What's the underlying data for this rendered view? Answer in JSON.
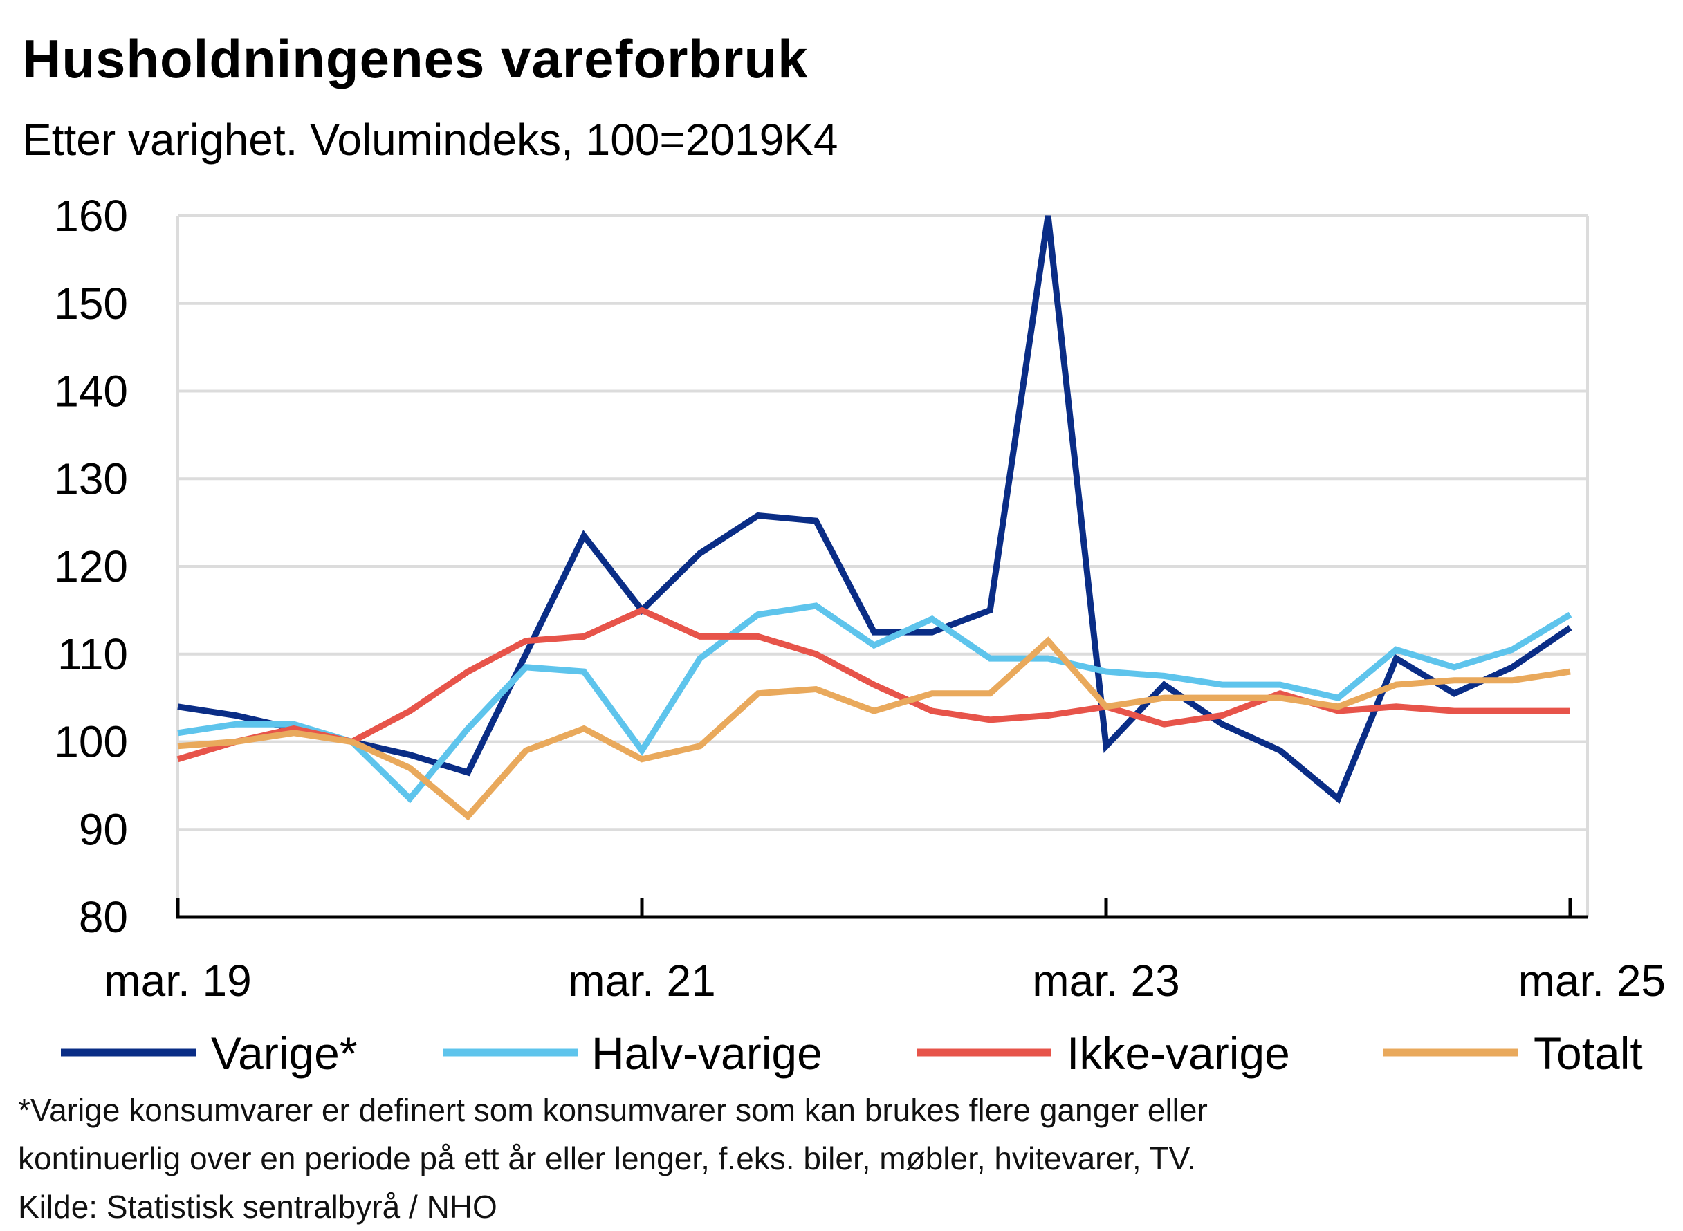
{
  "title": "Husholdningenes vareforbruk",
  "subtitle": "Etter varighet. Volumindeks, 100=2019K4",
  "footnote": {
    "line1": "*Varige konsumvarer er definert som konsumvarer som kan brukes flere ganger eller",
    "line2": "kontinuerlig over en periode på ett år eller lenger, f.eks. biler, møbler, hvitevarer, TV.",
    "source": "Kilde: Statistisk sentralbyrå / NHO"
  },
  "chart_data": {
    "type": "line",
    "x": [
      "2019K1",
      "2019K2",
      "2019K3",
      "2019K4",
      "2020K1",
      "2020K2",
      "2020K3",
      "2020K4",
      "2021K1",
      "2021K2",
      "2021K3",
      "2021K4",
      "2022K1",
      "2022K2",
      "2022K3",
      "2022K4",
      "2023K1",
      "2023K2",
      "2023K3",
      "2023K4",
      "2024K1",
      "2024K2",
      "2024K3",
      "2024K4",
      "2025K1"
    ],
    "x_tick_labels": [
      {
        "index": 0,
        "label": "mar. 19"
      },
      {
        "index": 8,
        "label": "mar. 21"
      },
      {
        "index": 16,
        "label": "mar. 23"
      },
      {
        "index": 24,
        "label": "mar. 25"
      }
    ],
    "ylim": [
      80,
      160
    ],
    "yticks": [
      80,
      90,
      100,
      110,
      120,
      130,
      140,
      150,
      160
    ],
    "grid": true,
    "legend_position": "bottom",
    "series": [
      {
        "name": "Varige*",
        "color": "#0a2d86",
        "values": [
          104,
          103,
          101.5,
          100,
          98.5,
          96.5,
          110,
          123.5,
          115,
          121.5,
          125.8,
          125.2,
          112.5,
          112.5,
          115,
          160,
          99.5,
          106.5,
          102,
          99,
          93.5,
          109.5,
          105.5,
          108.5,
          113
        ]
      },
      {
        "name": "Halv-varige",
        "color": "#5ec4ec",
        "values": [
          101,
          102,
          102,
          100,
          93.5,
          101.5,
          108.5,
          108,
          99,
          109.5,
          114.5,
          115.5,
          111,
          114,
          109.5,
          109.5,
          108,
          107.5,
          106.5,
          106.5,
          105,
          110.5,
          108.5,
          110.5,
          114.5
        ]
      },
      {
        "name": "Ikke-varige",
        "color": "#e7544a",
        "values": [
          98,
          100,
          101.5,
          100,
          103.5,
          108,
          111.5,
          112,
          115,
          112,
          112,
          110,
          106.5,
          103.5,
          102.5,
          103,
          104,
          102,
          103,
          105.5,
          103.5,
          104,
          103.5,
          103.5,
          103.5
        ]
      },
      {
        "name": "Totalt",
        "color": "#e9a95c",
        "values": [
          99.5,
          100,
          101,
          100,
          97,
          91.5,
          99,
          101.5,
          98,
          99.5,
          105.5,
          106,
          103.5,
          105.5,
          105.5,
          111.5,
          104,
          105,
          105,
          105,
          104,
          106.5,
          107,
          107,
          108
        ]
      }
    ]
  }
}
